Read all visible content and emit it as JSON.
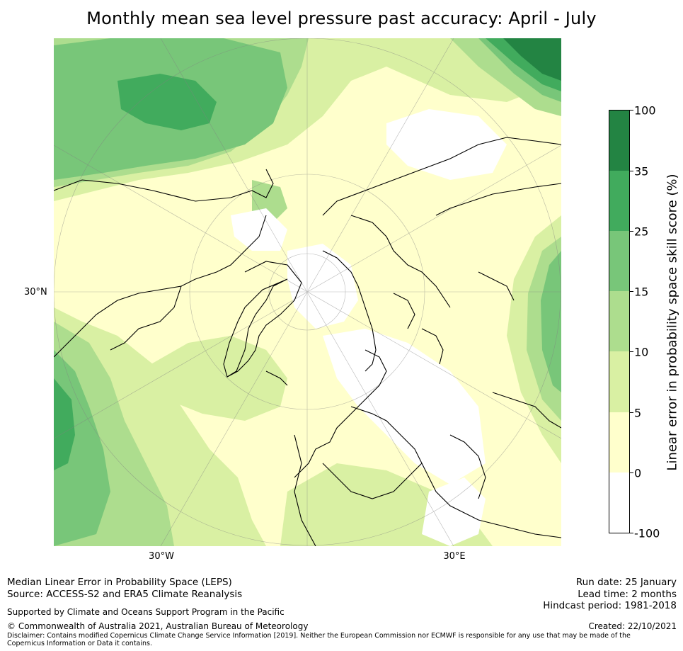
{
  "title": "Monthly mean sea level pressure past accuracy: April - July",
  "map": {
    "projection": "north-polar-stereographic",
    "lat_label": "30°N",
    "lon_labels": [
      "30°W",
      "30°E"
    ]
  },
  "colorbar": {
    "label": "Linear error in probability space skill score (%)",
    "ticks": [
      "100",
      "35",
      "25",
      "15",
      "10",
      "5",
      "0",
      "-100"
    ],
    "bins": [
      {
        "range": "35 to 100",
        "color": "#238443"
      },
      {
        "range": "25 to 35",
        "color": "#41ab5d"
      },
      {
        "range": "15 to 25",
        "color": "#78c679"
      },
      {
        "range": "10 to 15",
        "color": "#addd8e"
      },
      {
        "range": "5 to 10",
        "color": "#d9f0a3"
      },
      {
        "range": "0 to 5",
        "color": "#ffffcc"
      },
      {
        "range": "-100 to 0",
        "color": "#ffffff"
      }
    ]
  },
  "footer": {
    "method": "Median Linear Error in Probability Space (LEPS)",
    "source": "Source: ACCESS-S2 and ERA5 Climate Reanalysis",
    "support": "Supported by Climate and Oceans Support Program in the Pacific",
    "copyright": "© Commonwealth of Australia 2021, Australian Bureau of Meteorology",
    "disclaimer": "Disclaimer: Contains modified Copernicus Climate Change Service Information [2019]. Neither the European Commission nor ECMWF is responsible for any use that may be made of the Copernicus Information or Data it contains.",
    "run_date": "Run date: 25 January",
    "lead_time": "Lead time: 2 months",
    "hindcast": "Hindcast period: 1981-2018",
    "created": "Created: 22/10/2021"
  }
}
